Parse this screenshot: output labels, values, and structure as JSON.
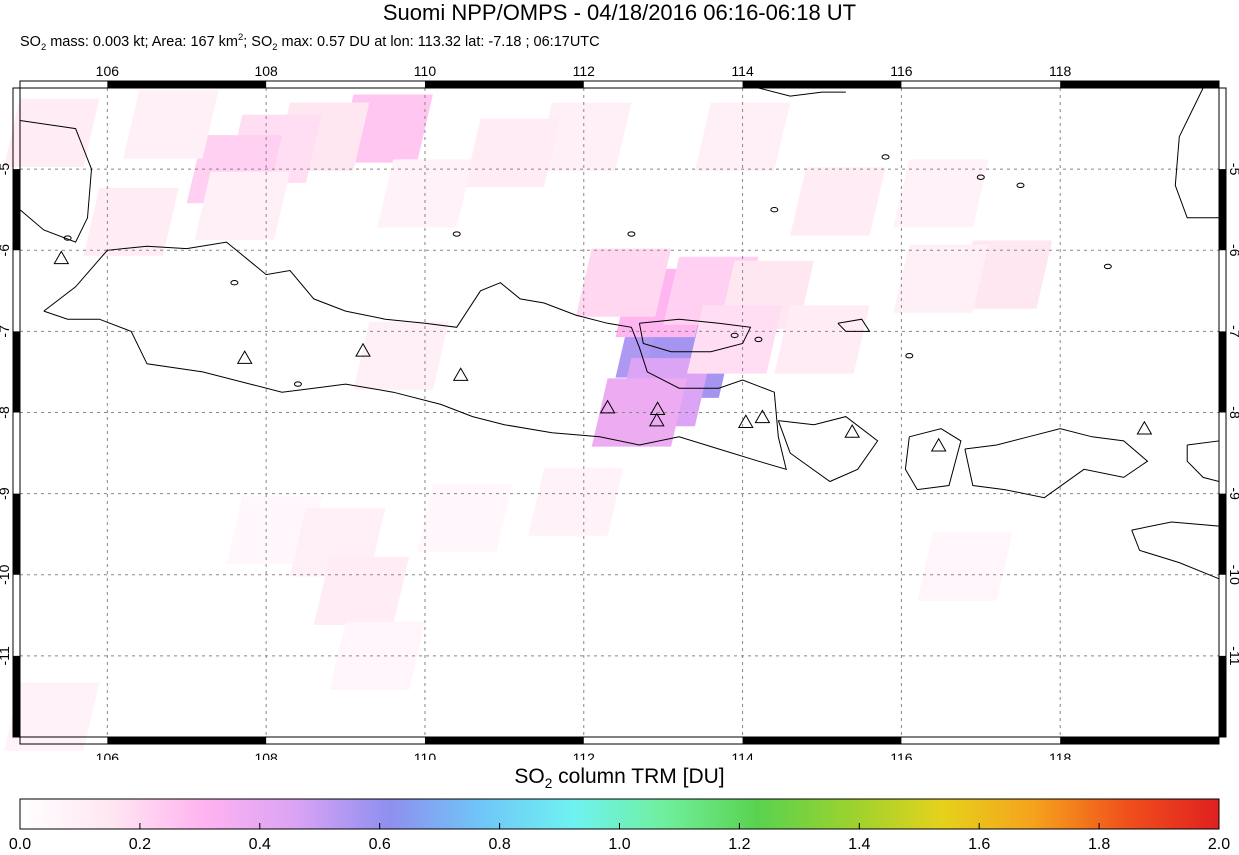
{
  "header": {
    "title": "Suomi NPP/OMPS - 04/18/2016 06:16-06:18 UT",
    "stats": {
      "mass_label": "SO",
      "mass_sub": "2",
      "mass_text": " mass: 0.003 kt; Area: 167 km",
      "area_sup": "2",
      "max_prefix": "; SO",
      "max_sub": "2",
      "max_text": " max: 0.57 DU at lon: 113.32 lat: -7.18 ; 06:17UTC"
    }
  },
  "map": {
    "lon_range": [
      104.9,
      120.0
    ],
    "lat_range": [
      -12.0,
      -4.0
    ],
    "lon_ticks": [
      106,
      108,
      110,
      112,
      114,
      116,
      118
    ],
    "lat_ticks": [
      -5,
      -6,
      -7,
      -8,
      -9,
      -10,
      -11
    ],
    "lon_labels": [
      "106",
      "108",
      "110",
      "112",
      "114",
      "116",
      "118"
    ],
    "lat_labels": [
      "-5",
      "-6",
      "-7",
      "-8",
      "-9",
      "-10",
      "-11"
    ],
    "coast_color": "#000000",
    "grid_color": "#888888",
    "volcanoes": [
      {
        "lon": 105.42,
        "lat": -6.1
      },
      {
        "lon": 107.73,
        "lat": -7.33
      },
      {
        "lon": 109.22,
        "lat": -7.24
      },
      {
        "lon": 110.45,
        "lat": -7.54
      },
      {
        "lon": 112.3,
        "lat": -7.94
      },
      {
        "lon": 112.93,
        "lat": -7.96
      },
      {
        "lon": 112.92,
        "lat": -8.1
      },
      {
        "lon": 114.04,
        "lat": -8.12
      },
      {
        "lon": 114.25,
        "lat": -8.06
      },
      {
        "lon": 115.38,
        "lat": -8.24
      },
      {
        "lon": 116.47,
        "lat": -8.41
      },
      {
        "lon": 119.06,
        "lat": -8.2
      }
    ],
    "so2_pixels": [
      {
        "lon": 113.0,
        "lat": -7.15,
        "du": 0.55
      },
      {
        "lon": 113.3,
        "lat": -7.4,
        "du": 0.57
      },
      {
        "lon": 113.0,
        "lat": -7.75,
        "du": 0.45
      },
      {
        "lon": 112.7,
        "lat": -8.0,
        "du": 0.38
      },
      {
        "lon": 113.0,
        "lat": -6.65,
        "du": 0.3
      },
      {
        "lon": 113.6,
        "lat": -6.5,
        "du": 0.22
      },
      {
        "lon": 112.5,
        "lat": -6.4,
        "du": 0.2
      },
      {
        "lon": 114.3,
        "lat": -6.55,
        "du": 0.15
      },
      {
        "lon": 113.9,
        "lat": -7.1,
        "du": 0.18
      },
      {
        "lon": 115.0,
        "lat": -7.1,
        "du": 0.12
      },
      {
        "lon": 114.0,
        "lat": -4.6,
        "du": 0.1
      },
      {
        "lon": 115.2,
        "lat": -5.4,
        "du": 0.12
      },
      {
        "lon": 117.3,
        "lat": -6.3,
        "du": 0.15
      },
      {
        "lon": 116.5,
        "lat": -6.35,
        "du": 0.1
      },
      {
        "lon": 116.5,
        "lat": -5.3,
        "du": 0.08
      },
      {
        "lon": 112.0,
        "lat": -4.6,
        "du": 0.1
      },
      {
        "lon": 111.1,
        "lat": -4.8,
        "du": 0.12
      },
      {
        "lon": 109.5,
        "lat": -4.5,
        "du": 0.25
      },
      {
        "lon": 108.7,
        "lat": -4.6,
        "du": 0.15
      },
      {
        "lon": 108.1,
        "lat": -4.75,
        "du": 0.18
      },
      {
        "lon": 107.6,
        "lat": -5.0,
        "du": 0.22
      },
      {
        "lon": 106.8,
        "lat": -4.45,
        "du": 0.1
      },
      {
        "lon": 105.3,
        "lat": -4.55,
        "du": 0.12
      },
      {
        "lon": 106.3,
        "lat": -5.65,
        "du": 0.12
      },
      {
        "lon": 107.7,
        "lat": -5.45,
        "du": 0.1
      },
      {
        "lon": 110.0,
        "lat": -5.3,
        "du": 0.08
      },
      {
        "lon": 109.7,
        "lat": -7.3,
        "du": 0.1
      },
      {
        "lon": 111.9,
        "lat": -9.1,
        "du": 0.08
      },
      {
        "lon": 108.1,
        "lat": -9.45,
        "du": 0.05
      },
      {
        "lon": 108.9,
        "lat": -9.6,
        "du": 0.1
      },
      {
        "lon": 109.2,
        "lat": -10.2,
        "du": 0.12
      },
      {
        "lon": 109.4,
        "lat": -11.0,
        "du": 0.06
      },
      {
        "lon": 105.3,
        "lat": -11.75,
        "du": 0.08
      },
      {
        "lon": 116.8,
        "lat": -9.9,
        "du": 0.06
      },
      {
        "lon": 110.5,
        "lat": -9.3,
        "du": 0.05
      }
    ]
  },
  "colorbar": {
    "title_prefix": "SO",
    "title_sub": "2",
    "title_suffix": " column TRM [DU]",
    "min": 0.0,
    "max": 2.0,
    "tick_values": [
      0.0,
      0.2,
      0.4,
      0.6,
      0.8,
      1.0,
      1.2,
      1.4,
      1.6,
      1.8,
      2.0
    ],
    "tick_labels": [
      "0.0",
      "0.2",
      "0.4",
      "0.6",
      "0.8",
      "1.0",
      "1.2",
      "1.4",
      "1.6",
      "1.8",
      "2.0"
    ],
    "colors": [
      "#ffffff",
      "#ffe6f2",
      "#ffb3f0",
      "#d9a3f5",
      "#8f8fef",
      "#6fc6f7",
      "#6ff2f2",
      "#6fef9c",
      "#5ad24f",
      "#9ad22f",
      "#e6d21c",
      "#f5a21c",
      "#f0501c",
      "#e02020"
    ]
  }
}
